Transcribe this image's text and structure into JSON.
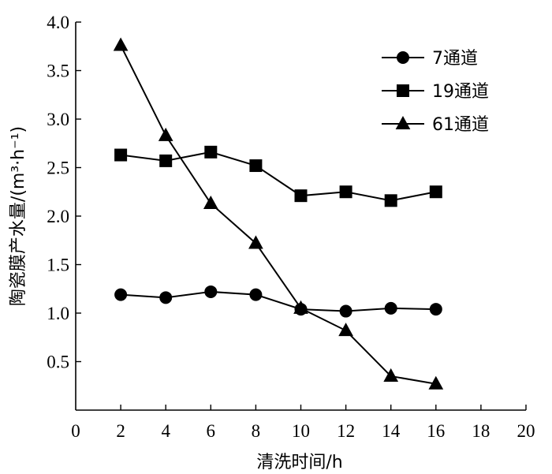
{
  "chart_data": {
    "type": "line",
    "xlabel": "清洗时间/h",
    "ylabel": "陶瓷膜产水量/(m³·h⁻¹)",
    "xlim": [
      0,
      20
    ],
    "ylim": [
      0,
      4.0
    ],
    "x_ticks": [
      0,
      2,
      4,
      6,
      8,
      10,
      12,
      14,
      16,
      18,
      20
    ],
    "y_ticks": [
      0.5,
      1.0,
      1.5,
      2.0,
      2.5,
      3.0,
      3.5,
      4.0
    ],
    "x_tick_labels": [
      "0",
      "2",
      "4",
      "6",
      "8",
      "10",
      "12",
      "14",
      "16",
      "18",
      "20"
    ],
    "y_tick_labels": [
      "0.5",
      "1.0",
      "1.5",
      "2.0",
      "2.5",
      "3.0",
      "3.5",
      "4.0"
    ],
    "grid": false,
    "legend_position": "top-right",
    "x": [
      2,
      4,
      6,
      8,
      10,
      12,
      14,
      16
    ],
    "series": [
      {
        "name": "7通道",
        "marker": "circle",
        "values": [
          1.19,
          1.16,
          1.22,
          1.19,
          1.04,
          1.02,
          1.05,
          1.04
        ]
      },
      {
        "name": "19通道",
        "marker": "square",
        "values": [
          2.63,
          2.57,
          2.66,
          2.52,
          2.21,
          2.25,
          2.16,
          2.25
        ]
      },
      {
        "name": "61通道",
        "marker": "triangle",
        "values": [
          3.76,
          2.83,
          2.13,
          1.72,
          1.05,
          0.82,
          0.35,
          0.27
        ]
      }
    ],
    "colors": {
      "line": "#000000",
      "marker": "#000000",
      "background": "#ffffff"
    }
  }
}
